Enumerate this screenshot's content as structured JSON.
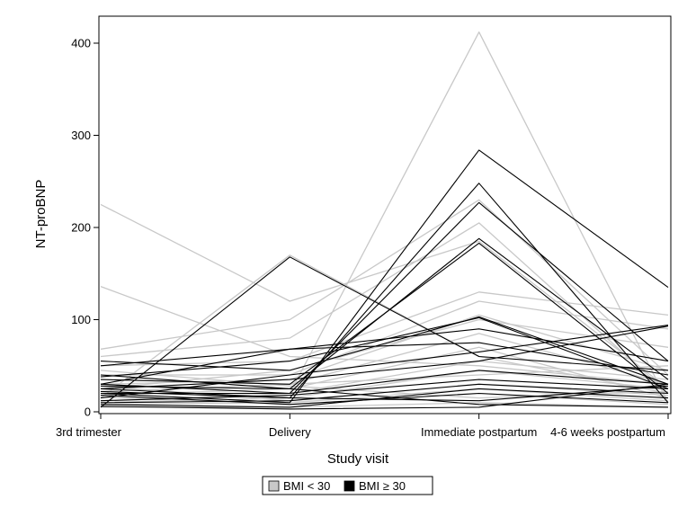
{
  "chart_data": {
    "type": "line",
    "title": "",
    "xlabel": "Study visit",
    "ylabel": "NT-proBNP",
    "categories": [
      "3rd trimester",
      "Delivery",
      "Immediate postpartum",
      "4-6 weeks postpartum"
    ],
    "ylim": [
      0,
      420
    ],
    "yticks": [
      0,
      100,
      200,
      300,
      400
    ],
    "grid": false,
    "legend_position": "bottom-center",
    "legend": [
      {
        "label": "BMI < 30",
        "color": "#c8c8c8"
      },
      {
        "label": "BMI ≥ 30",
        "color": "#000000"
      }
    ],
    "series": [
      {
        "group": "BMI < 30",
        "values": [
          225,
          120,
          185,
          25
        ]
      },
      {
        "group": "BMI < 30",
        "values": [
          136,
          60,
          50,
          30
        ]
      },
      {
        "group": "BMI < 30",
        "values": [
          20,
          20,
          412,
          10
        ]
      },
      {
        "group": "BMI < 30",
        "values": [
          68,
          100,
          230,
          40
        ]
      },
      {
        "group": "BMI < 30",
        "values": [
          60,
          80,
          205,
          20
        ]
      },
      {
        "group": "BMI < 30",
        "values": [
          15,
          170,
          60,
          20
        ]
      },
      {
        "group": "BMI < 30",
        "values": [
          50,
          55,
          130,
          105
        ]
      },
      {
        "group": "BMI < 30",
        "values": [
          40,
          40,
          120,
          90
        ]
      },
      {
        "group": "BMI < 30",
        "values": [
          30,
          35,
          105,
          45
        ]
      },
      {
        "group": "BMI < 30",
        "values": [
          25,
          45,
          100,
          70
        ]
      },
      {
        "group": "BMI < 30",
        "values": [
          22,
          30,
          85,
          30
        ]
      },
      {
        "group": "BMI < 30",
        "values": [
          18,
          25,
          70,
          15
        ]
      },
      {
        "group": "BMI < 30",
        "values": [
          12,
          20,
          55,
          35
        ]
      },
      {
        "group": "BMI < 30",
        "values": [
          10,
          15,
          45,
          25
        ]
      },
      {
        "group": "BMI < 30",
        "values": [
          35,
          30,
          40,
          50
        ]
      },
      {
        "group": "BMI < 30",
        "values": [
          28,
          12,
          30,
          18
        ]
      },
      {
        "group": "BMI < 30",
        "values": [
          8,
          10,
          25,
          12
        ]
      },
      {
        "group": "BMI < 30",
        "values": [
          16,
          8,
          20,
          8
        ]
      },
      {
        "group": "BMI < 30",
        "values": [
          45,
          28,
          15,
          22
        ]
      },
      {
        "group": "BMI < 30",
        "values": [
          5,
          5,
          10,
          5
        ]
      },
      {
        "group": "BMI ≥ 30",
        "values": [
          5,
          168,
          60,
          45
        ]
      },
      {
        "group": "BMI ≥ 30",
        "values": [
          20,
          10,
          284,
          135
        ]
      },
      {
        "group": "BMI ≥ 30",
        "values": [
          25,
          15,
          248,
          10
        ]
      },
      {
        "group": "BMI ≥ 30",
        "values": [
          30,
          20,
          227,
          55
        ]
      },
      {
        "group": "BMI ≥ 30",
        "values": [
          40,
          25,
          188,
          35
        ]
      },
      {
        "group": "BMI ≥ 30",
        "values": [
          35,
          30,
          183,
          20
        ]
      },
      {
        "group": "BMI ≥ 30",
        "values": [
          55,
          45,
          103,
          30
        ]
      },
      {
        "group": "BMI ≥ 30",
        "values": [
          38,
          55,
          102,
          25
        ]
      },
      {
        "group": "BMI ≥ 30",
        "values": [
          50,
          68,
          90,
          55
        ]
      },
      {
        "group": "BMI ≥ 30",
        "values": [
          30,
          68,
          75,
          40
        ]
      },
      {
        "group": "BMI ≥ 30",
        "values": [
          15,
          40,
          65,
          94
        ]
      },
      {
        "group": "BMI ≥ 30",
        "values": [
          25,
          35,
          55,
          93
        ]
      },
      {
        "group": "BMI ≥ 30",
        "values": [
          20,
          20,
          45,
          30
        ]
      },
      {
        "group": "BMI ≥ 30",
        "values": [
          12,
          18,
          35,
          25
        ]
      },
      {
        "group": "BMI ≥ 30",
        "values": [
          10,
          12,
          30,
          20
        ]
      },
      {
        "group": "BMI ≥ 30",
        "values": [
          8,
          5,
          25,
          15
        ]
      },
      {
        "group": "BMI ≥ 30",
        "values": [
          18,
          8,
          20,
          10
        ]
      },
      {
        "group": "BMI ≥ 30",
        "values": [
          22,
          15,
          12,
          28
        ]
      },
      {
        "group": "BMI ≥ 30",
        "values": [
          28,
          25,
          8,
          5
        ]
      },
      {
        "group": "BMI ≥ 30",
        "values": [
          6,
          3,
          5,
          30
        ]
      }
    ]
  }
}
